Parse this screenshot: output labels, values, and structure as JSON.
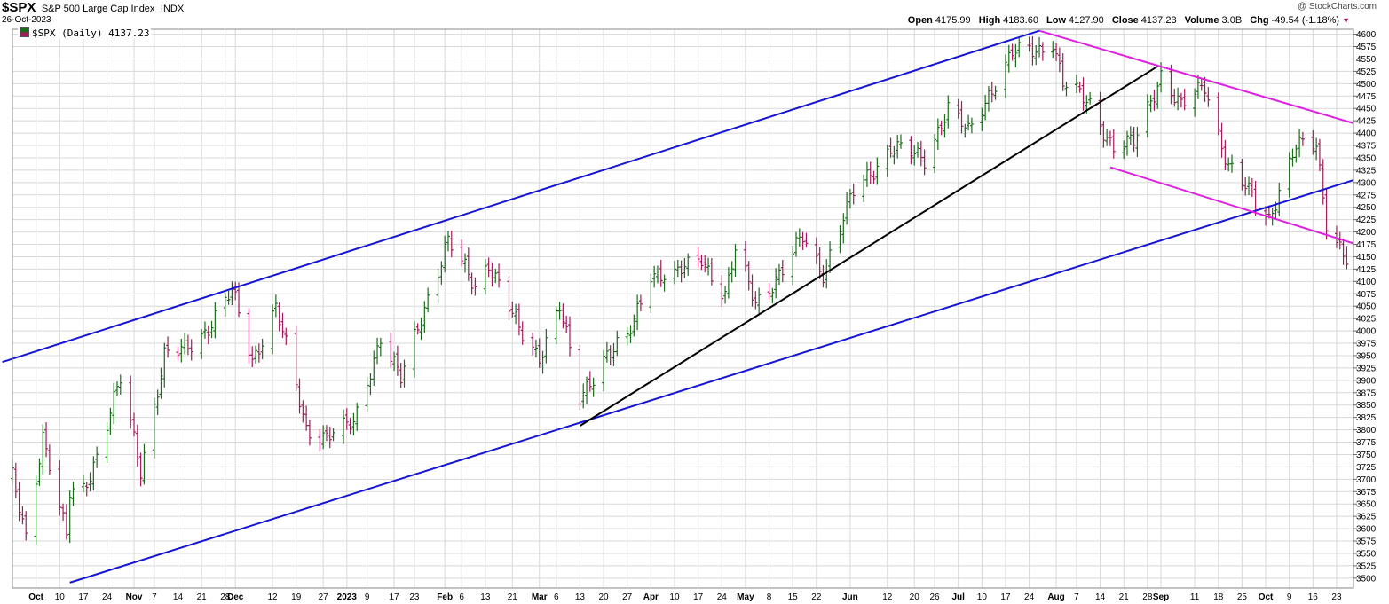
{
  "header": {
    "symbol": "$SPX",
    "name": "S&P 500 Large Cap Index",
    "exchange": "INDX",
    "date": "26-Oct-2023",
    "brand": "@ StockCharts.com",
    "open_label": "Open",
    "open": "4175.99",
    "high_label": "High",
    "high": "4183.60",
    "low_label": "Low",
    "low": "4127.90",
    "close_label": "Close",
    "close": "4137.23",
    "volume_label": "Volume",
    "volume": "3.0B",
    "chg_label": "Chg",
    "chg": "-49.54 (-1.18%)"
  },
  "legend": {
    "text": "$SPX (Daily) 4137.23"
  },
  "colors": {
    "up": "#1b6b1b",
    "down": "#a3195b",
    "channel": "#1515d6",
    "trend": "#000000",
    "down_channel": "#e020e0",
    "grid": "#d8d8d8"
  },
  "chart_data": {
    "type": "ohlc",
    "ylim": [
      3480,
      4610
    ],
    "y_ticks": [
      3500,
      3525,
      3550,
      3575,
      3600,
      3625,
      3650,
      3675,
      3700,
      3725,
      3750,
      3775,
      3800,
      3825,
      3850,
      3875,
      3900,
      3925,
      3950,
      3975,
      4000,
      4025,
      4050,
      4075,
      4100,
      4125,
      4150,
      4175,
      4200,
      4225,
      4250,
      4275,
      4300,
      4325,
      4350,
      4375,
      4400,
      4425,
      4450,
      4475,
      4500,
      4525,
      4550,
      4575,
      4600
    ],
    "x_range": [
      "2022-09-26",
      "2023-10-28"
    ],
    "x_ticks": [
      {
        "date": "2022-10-03",
        "label": "Oct",
        "bold": true
      },
      {
        "date": "2022-10-10",
        "label": "10"
      },
      {
        "date": "2022-10-17",
        "label": "17"
      },
      {
        "date": "2022-10-24",
        "label": "24"
      },
      {
        "date": "2022-11-01",
        "label": "Nov",
        "bold": true
      },
      {
        "date": "2022-11-07",
        "label": "7"
      },
      {
        "date": "2022-11-14",
        "label": "14"
      },
      {
        "date": "2022-11-21",
        "label": "21"
      },
      {
        "date": "2022-11-28",
        "label": "28"
      },
      {
        "date": "2022-12-01",
        "label": "Dec",
        "bold": true
      },
      {
        "date": "2022-12-12",
        "label": "12"
      },
      {
        "date": "2022-12-19",
        "label": "19"
      },
      {
        "date": "2022-12-27",
        "label": "27"
      },
      {
        "date": "2023-01-03",
        "label": "2023",
        "bold": true
      },
      {
        "date": "2023-01-09",
        "label": "9"
      },
      {
        "date": "2023-01-17",
        "label": "17"
      },
      {
        "date": "2023-01-23",
        "label": "23"
      },
      {
        "date": "2023-02-01",
        "label": "Feb",
        "bold": true
      },
      {
        "date": "2023-02-06",
        "label": "6"
      },
      {
        "date": "2023-02-13",
        "label": "13"
      },
      {
        "date": "2023-02-21",
        "label": "21"
      },
      {
        "date": "2023-03-01",
        "label": "Mar",
        "bold": true
      },
      {
        "date": "2023-03-06",
        "label": "6"
      },
      {
        "date": "2023-03-13",
        "label": "13"
      },
      {
        "date": "2023-03-20",
        "label": "20"
      },
      {
        "date": "2023-03-27",
        "label": "27"
      },
      {
        "date": "2023-04-03",
        "label": "Apr",
        "bold": true
      },
      {
        "date": "2023-04-10",
        "label": "10"
      },
      {
        "date": "2023-04-17",
        "label": "17"
      },
      {
        "date": "2023-04-24",
        "label": "24"
      },
      {
        "date": "2023-05-01",
        "label": "May",
        "bold": true
      },
      {
        "date": "2023-05-08",
        "label": "8"
      },
      {
        "date": "2023-05-15",
        "label": "15"
      },
      {
        "date": "2023-05-22",
        "label": "22"
      },
      {
        "date": "2023-06-01",
        "label": "Jun",
        "bold": true
      },
      {
        "date": "2023-06-12",
        "label": "12"
      },
      {
        "date": "2023-06-20",
        "label": "20"
      },
      {
        "date": "2023-06-26",
        "label": "26"
      },
      {
        "date": "2023-07-03",
        "label": "Jul",
        "bold": true
      },
      {
        "date": "2023-07-10",
        "label": "10"
      },
      {
        "date": "2023-07-17",
        "label": "17"
      },
      {
        "date": "2023-07-24",
        "label": "24"
      },
      {
        "date": "2023-08-01",
        "label": "Aug",
        "bold": true
      },
      {
        "date": "2023-08-07",
        "label": "7"
      },
      {
        "date": "2023-08-14",
        "label": "14"
      },
      {
        "date": "2023-08-21",
        "label": "21"
      },
      {
        "date": "2023-08-28",
        "label": "28"
      },
      {
        "date": "2023-09-01",
        "label": "Sep",
        "bold": true
      },
      {
        "date": "2023-09-11",
        "label": "11"
      },
      {
        "date": "2023-09-18",
        "label": "18"
      },
      {
        "date": "2023-09-25",
        "label": "25"
      },
      {
        "date": "2023-10-02",
        "label": "Oct",
        "bold": true
      },
      {
        "date": "2023-10-09",
        "label": "9"
      },
      {
        "date": "2023-10-16",
        "label": "16"
      },
      {
        "date": "2023-10-23",
        "label": "23"
      }
    ],
    "anchors": [
      [
        "2022-09-26",
        3700
      ],
      [
        "2022-09-30",
        3585
      ],
      [
        "2022-10-05",
        3790
      ],
      [
        "2022-10-12",
        3580
      ],
      [
        "2022-10-13",
        3670
      ],
      [
        "2022-10-17",
        3680
      ],
      [
        "2022-10-21",
        3750
      ],
      [
        "2022-10-28",
        3900
      ],
      [
        "2022-11-03",
        3720
      ],
      [
        "2022-11-10",
        3950
      ],
      [
        "2022-11-16",
        3960
      ],
      [
        "2022-11-22",
        4000
      ],
      [
        "2022-11-30",
        4080
      ],
      [
        "2022-12-06",
        3940
      ],
      [
        "2022-12-13",
        4050
      ],
      [
        "2022-12-22",
        3800
      ],
      [
        "2022-12-28",
        3790
      ],
      [
        "2023-01-05",
        3810
      ],
      [
        "2023-01-13",
        3990
      ],
      [
        "2023-01-19",
        3900
      ],
      [
        "2023-01-27",
        4070
      ],
      [
        "2023-02-02",
        4180
      ],
      [
        "2023-02-10",
        4090
      ],
      [
        "2023-02-14",
        4140
      ],
      [
        "2023-02-23",
        4000
      ],
      [
        "2023-03-01",
        3950
      ],
      [
        "2023-03-07",
        4050
      ],
      [
        "2023-03-13",
        3860
      ],
      [
        "2023-03-20",
        3950
      ],
      [
        "2023-03-27",
        3980
      ],
      [
        "2023-04-03",
        4120
      ],
      [
        "2023-04-10",
        4110
      ],
      [
        "2023-04-18",
        4150
      ],
      [
        "2023-04-25",
        4070
      ],
      [
        "2023-04-28",
        4160
      ],
      [
        "2023-05-04",
        4060
      ],
      [
        "2023-05-12",
        4120
      ],
      [
        "2023-05-18",
        4190
      ],
      [
        "2023-05-24",
        4120
      ],
      [
        "2023-06-02",
        4280
      ],
      [
        "2023-06-13",
        4370
      ],
      [
        "2023-06-23",
        4350
      ],
      [
        "2023-06-30",
        4450
      ],
      [
        "2023-07-06",
        4400
      ],
      [
        "2023-07-12",
        4480
      ],
      [
        "2023-07-19",
        4560
      ],
      [
        "2023-07-27",
        4570
      ],
      [
        "2023-07-31",
        4590
      ],
      [
        "2023-08-03",
        4500
      ],
      [
        "2023-08-11",
        4460
      ],
      [
        "2023-08-18",
        4370
      ],
      [
        "2023-08-24",
        4380
      ],
      [
        "2023-09-01",
        4520
      ],
      [
        "2023-09-07",
        4450
      ],
      [
        "2023-09-14",
        4500
      ],
      [
        "2023-09-21",
        4330
      ],
      [
        "2023-09-27",
        4280
      ],
      [
        "2023-10-03",
        4230
      ],
      [
        "2023-10-11",
        4370
      ],
      [
        "2023-10-17",
        4380
      ],
      [
        "2023-10-20",
        4225
      ],
      [
        "2023-10-26",
        4140
      ]
    ],
    "trendlines": [
      {
        "points": [
          [
            "2022-09-23",
            3937
          ],
          [
            "2023-07-27",
            4607
          ]
        ],
        "color": "channel"
      },
      {
        "points": [
          [
            "2022-10-13",
            3491
          ],
          [
            "2023-10-28",
            4305
          ]
        ],
        "color": "channel"
      },
      {
        "points": [
          [
            "2023-03-13",
            3808
          ],
          [
            "2023-08-31",
            4535
          ]
        ],
        "color": "trend"
      },
      {
        "points": [
          [
            "2023-07-27",
            4607
          ],
          [
            "2023-10-28",
            4420
          ]
        ],
        "color": "down_channel"
      },
      {
        "points": [
          [
            "2023-08-17",
            4331
          ],
          [
            "2023-10-28",
            4177
          ]
        ],
        "color": "down_channel"
      }
    ]
  }
}
